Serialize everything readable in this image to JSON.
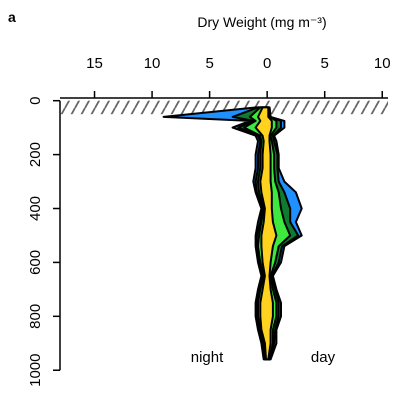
{
  "panel_label": "a",
  "chart_data": {
    "type": "area",
    "title": "Dry Weight (mg m⁻³)",
    "xlabel": "Dry Weight (mg m⁻³)",
    "ylabel": "",
    "x_axis_position": "top",
    "x_tick_labels": [
      "15",
      "10",
      "5",
      "0",
      "5",
      "10"
    ],
    "x_tick_values": [
      -15,
      -10,
      -5,
      0,
      5,
      10
    ],
    "xlim": [
      -18,
      10.5
    ],
    "y_tick_labels": [
      "0",
      "200",
      "400",
      "600",
      "800",
      "1000"
    ],
    "y_tick_values": [
      0,
      200,
      400,
      600,
      800,
      1000
    ],
    "ylim": [
      1040,
      -10
    ],
    "y_reversed": true,
    "x_negative_means": "night",
    "x_positive_means": "day",
    "annotations": [
      "night",
      "day"
    ],
    "surface_layer": {
      "from": 0,
      "to": 50,
      "style": "hatched"
    },
    "depth": [
      25,
      60,
      75,
      100,
      130,
      150,
      200,
      250,
      300,
      340,
      400,
      450,
      500,
      540,
      600,
      650,
      700,
      750,
      800,
      850,
      900,
      960
    ],
    "series": [
      {
        "color": "#1e90ff",
        "night": [
          -1,
          -9,
          -1.5,
          -3,
          -1,
          -0.8,
          -1,
          -1,
          -1.2,
          -1,
          -0.5,
          -0.8,
          -1,
          -1,
          -0.8,
          -0.5,
          -0.8,
          -1,
          -1,
          -0.8,
          -0.5,
          -0.3
        ],
        "day": [
          0.2,
          0.3,
          1.5,
          1.5,
          0.6,
          0.8,
          1,
          1,
          1.5,
          2.5,
          3,
          2.5,
          3,
          1.5,
          1.2,
          0.5,
          0.8,
          1.2,
          1.2,
          0.8,
          0.8,
          0.3
        ]
      },
      {
        "color": "#107a30",
        "night": [
          -0.8,
          -3,
          -1.2,
          -2.5,
          -0.8,
          -0.6,
          -0.8,
          -0.8,
          -1,
          -0.9,
          -0.4,
          -0.6,
          -0.9,
          -0.9,
          -0.7,
          -0.4,
          -0.7,
          -0.9,
          -0.9,
          -0.7,
          -0.4,
          -0.2
        ],
        "day": [
          0.2,
          0.3,
          1.2,
          1.2,
          0.5,
          0.6,
          0.9,
          0.9,
          1,
          1.5,
          2,
          2,
          2.7,
          1.3,
          1,
          0.4,
          0.7,
          1,
          1,
          0.7,
          0.6,
          0.2
        ]
      },
      {
        "color": "#3ee83e",
        "night": [
          -0.6,
          -1.5,
          -1,
          -2,
          -0.6,
          -0.5,
          -0.6,
          -0.6,
          -0.8,
          -0.7,
          -0.3,
          -0.5,
          -0.7,
          -0.8,
          -0.6,
          -0.3,
          -0.6,
          -0.8,
          -0.8,
          -0.6,
          -0.3,
          -0.2
        ],
        "day": [
          0.1,
          0.2,
          0.8,
          0.8,
          0.3,
          0.4,
          0.6,
          0.6,
          0.7,
          1,
          1.2,
          1.5,
          2,
          1,
          0.7,
          0.3,
          0.5,
          0.8,
          0.8,
          0.5,
          0.5,
          0.2
        ]
      },
      {
        "color": "#ffd21f",
        "night": [
          -0.4,
          -0.8,
          -0.6,
          -1,
          -0.4,
          -0.3,
          -0.4,
          -0.4,
          -0.6,
          -0.5,
          -0.2,
          -0.3,
          -0.5,
          -0.5,
          -0.4,
          -0.2,
          -0.4,
          -0.6,
          -0.6,
          -0.5,
          -0.2,
          -0.1
        ],
        "day": [
          0.1,
          0.1,
          0.4,
          0.4,
          0.2,
          0.2,
          0.3,
          0.3,
          0.3,
          0.4,
          0.4,
          0.5,
          0.8,
          0.5,
          0.3,
          0.2,
          0.3,
          0.5,
          0.5,
          0.3,
          0.3,
          0.1
        ]
      }
    ]
  }
}
